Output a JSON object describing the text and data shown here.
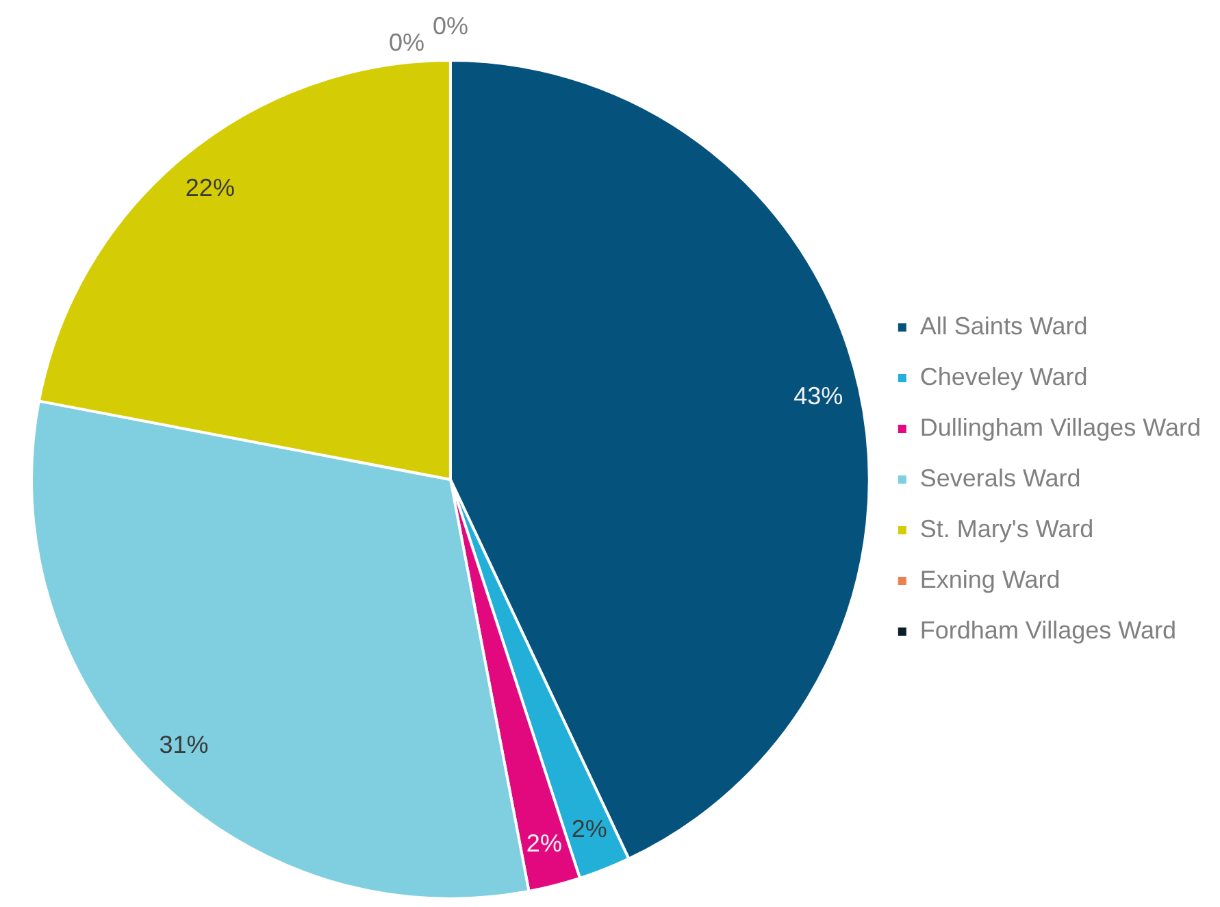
{
  "chart_data": {
    "type": "pie",
    "categories": [
      "All Saints Ward",
      "Cheveley Ward",
      "Dullingham Villages Ward",
      "Severals Ward",
      "St. Mary's Ward",
      "Exning Ward",
      "Fordham Villages Ward"
    ],
    "values": [
      43,
      2,
      2,
      31,
      22,
      0,
      0
    ],
    "colors": [
      "#05527c",
      "#23b0d8",
      "#e2097f",
      "#7fcfe0",
      "#d4cd06",
      "#ee8050",
      "#0b1e28"
    ],
    "value_labels": [
      "43%",
      "2%",
      "2%",
      "31%",
      "22%",
      "0%",
      "0%"
    ],
    "legend": "right"
  }
}
